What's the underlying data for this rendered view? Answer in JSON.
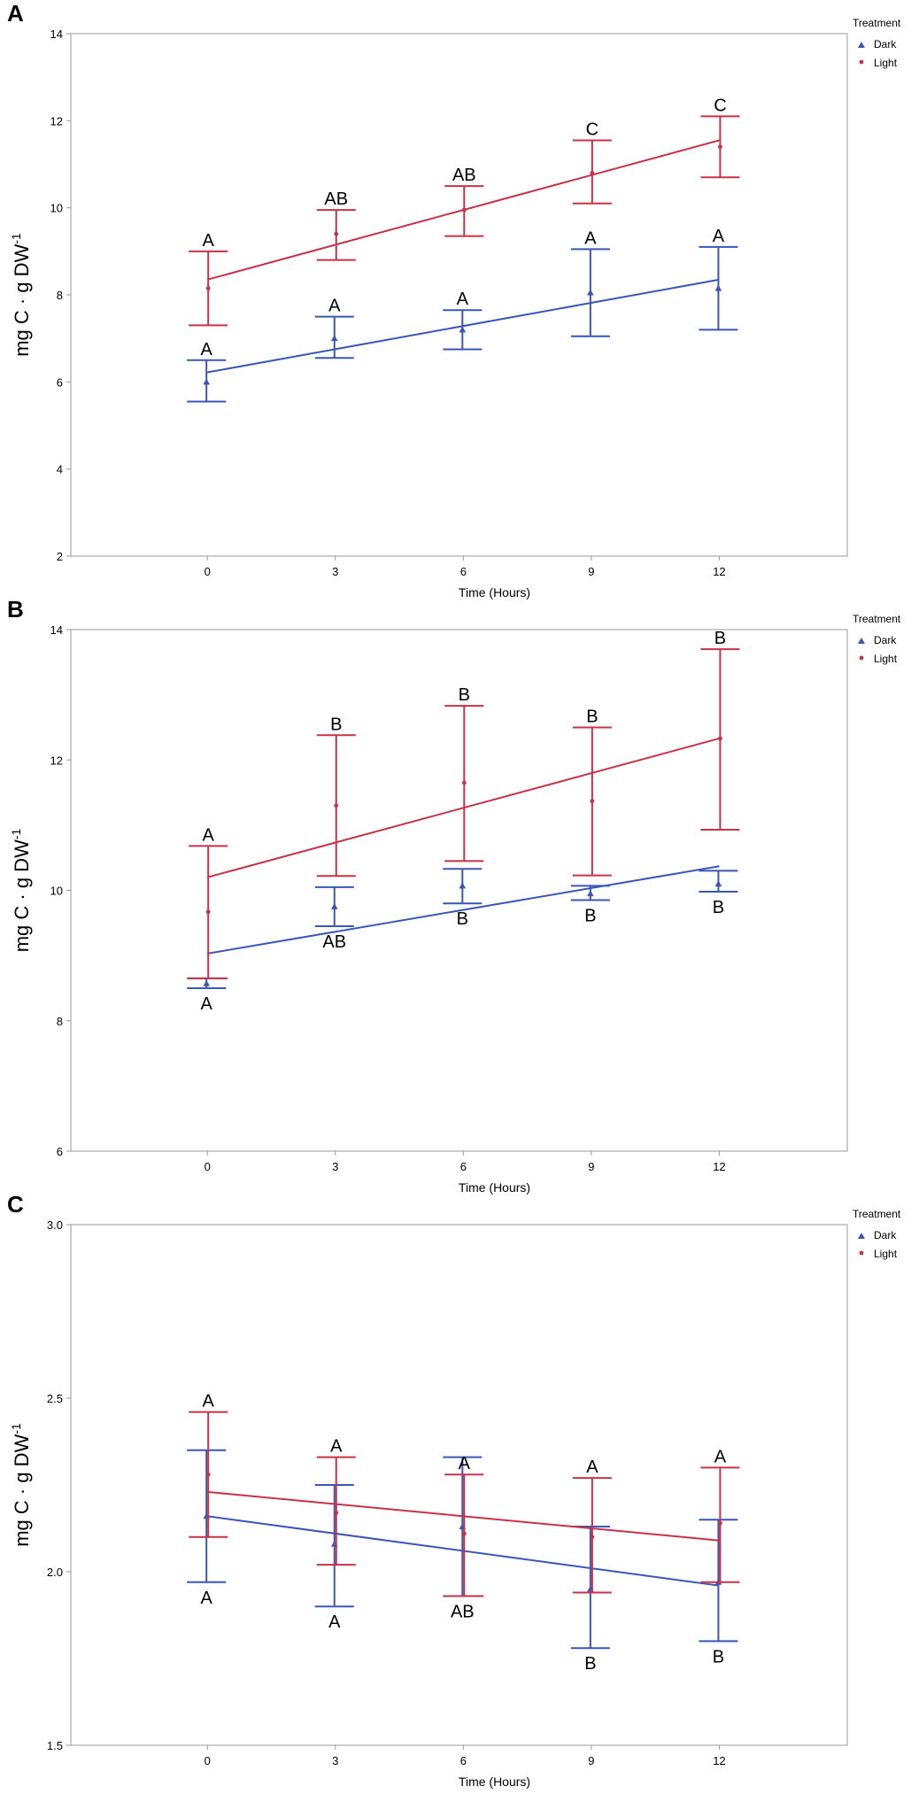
{
  "colors": {
    "dark": "#3a57b8",
    "light": "#c83246",
    "frame": "#9a9a9a"
  },
  "legend": {
    "title": "Treatment",
    "dark_label": "Dark",
    "light_label": "Light"
  },
  "chart_data": [
    {
      "id": "A",
      "type": "scatter",
      "panel_label": "A",
      "xlabel": "Time (Hours)",
      "ylabel": "mg C · g DW",
      "ylabel_sup": "-1",
      "x_ticks": [
        "0",
        "3",
        "6",
        "9",
        "12"
      ],
      "y_ticks": [
        "2",
        "4",
        "6",
        "8",
        "10",
        "12",
        "14"
      ],
      "xlim": [
        -3.2,
        15.0
      ],
      "ylim": [
        2,
        14
      ],
      "x": [
        0,
        3,
        6,
        9,
        12
      ],
      "series": [
        {
          "name": "Dark",
          "key": "dark",
          "means": [
            6.0,
            7.0,
            7.2,
            8.05,
            8.15
          ],
          "lower": [
            5.55,
            6.55,
            6.75,
            7.05,
            7.2
          ],
          "upper": [
            6.5,
            7.5,
            7.65,
            9.05,
            9.1
          ],
          "fit": [
            6.22,
            8.35
          ],
          "letters": [
            "A",
            "A",
            "A",
            "A",
            "A"
          ],
          "letter_pos": [
            "above",
            "above",
            "above",
            "above",
            "above"
          ]
        },
        {
          "name": "Light",
          "key": "light",
          "means": [
            8.15,
            9.4,
            9.95,
            10.8,
            11.4
          ],
          "lower": [
            7.3,
            8.8,
            9.35,
            10.1,
            10.7
          ],
          "upper": [
            9.0,
            9.95,
            10.5,
            11.55,
            12.1
          ],
          "fit": [
            8.35,
            11.55
          ],
          "letters": [
            "A",
            "AB",
            "AB",
            "C",
            "C"
          ],
          "letter_pos": [
            "above",
            "above",
            "above",
            "above",
            "above"
          ]
        }
      ]
    },
    {
      "id": "B",
      "type": "scatter",
      "panel_label": "B",
      "xlabel": "Time (Hours)",
      "ylabel": "mg C · g DW",
      "ylabel_sup": "-1",
      "x_ticks": [
        "0",
        "3",
        "6",
        "9",
        "12"
      ],
      "y_ticks": [
        "6",
        "8",
        "10",
        "12",
        "14"
      ],
      "xlim": [
        -3.2,
        15.0
      ],
      "ylim": [
        6,
        14
      ],
      "x": [
        0,
        3,
        6,
        9,
        12
      ],
      "series": [
        {
          "name": "Dark",
          "key": "dark",
          "means": [
            8.57,
            9.75,
            10.07,
            9.95,
            10.1
          ],
          "lower": [
            8.5,
            9.45,
            9.8,
            9.85,
            9.98
          ],
          "upper": [
            8.65,
            10.05,
            10.33,
            10.07,
            10.3
          ],
          "fit": [
            9.03,
            10.37
          ],
          "letters": [
            "A",
            "AB",
            "B",
            "B",
            "B"
          ],
          "letter_pos": [
            "below",
            "below",
            "below",
            "below",
            "below"
          ]
        },
        {
          "name": "Light",
          "key": "light",
          "means": [
            9.67,
            11.3,
            11.65,
            11.37,
            12.33
          ],
          "lower": [
            8.65,
            10.22,
            10.45,
            10.23,
            10.93
          ],
          "upper": [
            10.68,
            12.38,
            12.83,
            12.5,
            13.7
          ],
          "fit": [
            10.2,
            12.33
          ],
          "letters": [
            "A",
            "B",
            "B",
            "B",
            "B"
          ],
          "letter_pos": [
            "above",
            "above",
            "above",
            "above",
            "above"
          ]
        }
      ]
    },
    {
      "id": "C",
      "type": "scatter",
      "panel_label": "C",
      "xlabel": "Time (Hours)",
      "ylabel": "mg C · g DW",
      "ylabel_sup": "-1",
      "x_ticks": [
        "0",
        "3",
        "6",
        "9",
        "12"
      ],
      "y_ticks": [
        "1.5",
        "2.0",
        "2.5",
        "3.0"
      ],
      "xlim": [
        -3.2,
        15.0
      ],
      "ylim": [
        1.5,
        3.0
      ],
      "x": [
        0,
        3,
        6,
        9,
        12
      ],
      "series": [
        {
          "name": "Dark",
          "key": "dark",
          "means": [
            2.16,
            2.08,
            2.13,
            1.95,
            1.97
          ],
          "lower": [
            1.97,
            1.9,
            1.93,
            1.78,
            1.8
          ],
          "upper": [
            2.35,
            2.25,
            2.33,
            2.13,
            2.15
          ],
          "fit": [
            2.16,
            1.96
          ],
          "letters": [
            "A",
            "A",
            "AB",
            "B",
            "B"
          ],
          "letter_pos": [
            "below",
            "below",
            "below",
            "below",
            "below"
          ]
        },
        {
          "name": "Light",
          "key": "light",
          "means": [
            2.28,
            2.17,
            2.11,
            2.1,
            2.14
          ],
          "lower": [
            2.1,
            2.02,
            1.93,
            1.94,
            1.97
          ],
          "upper": [
            2.46,
            2.33,
            2.28,
            2.27,
            2.3
          ],
          "fit": [
            2.23,
            2.09
          ],
          "letters": [
            "A",
            "A",
            "A",
            "A",
            "A"
          ],
          "letter_pos": [
            "above",
            "above",
            "above",
            "above",
            "above"
          ]
        }
      ]
    }
  ]
}
